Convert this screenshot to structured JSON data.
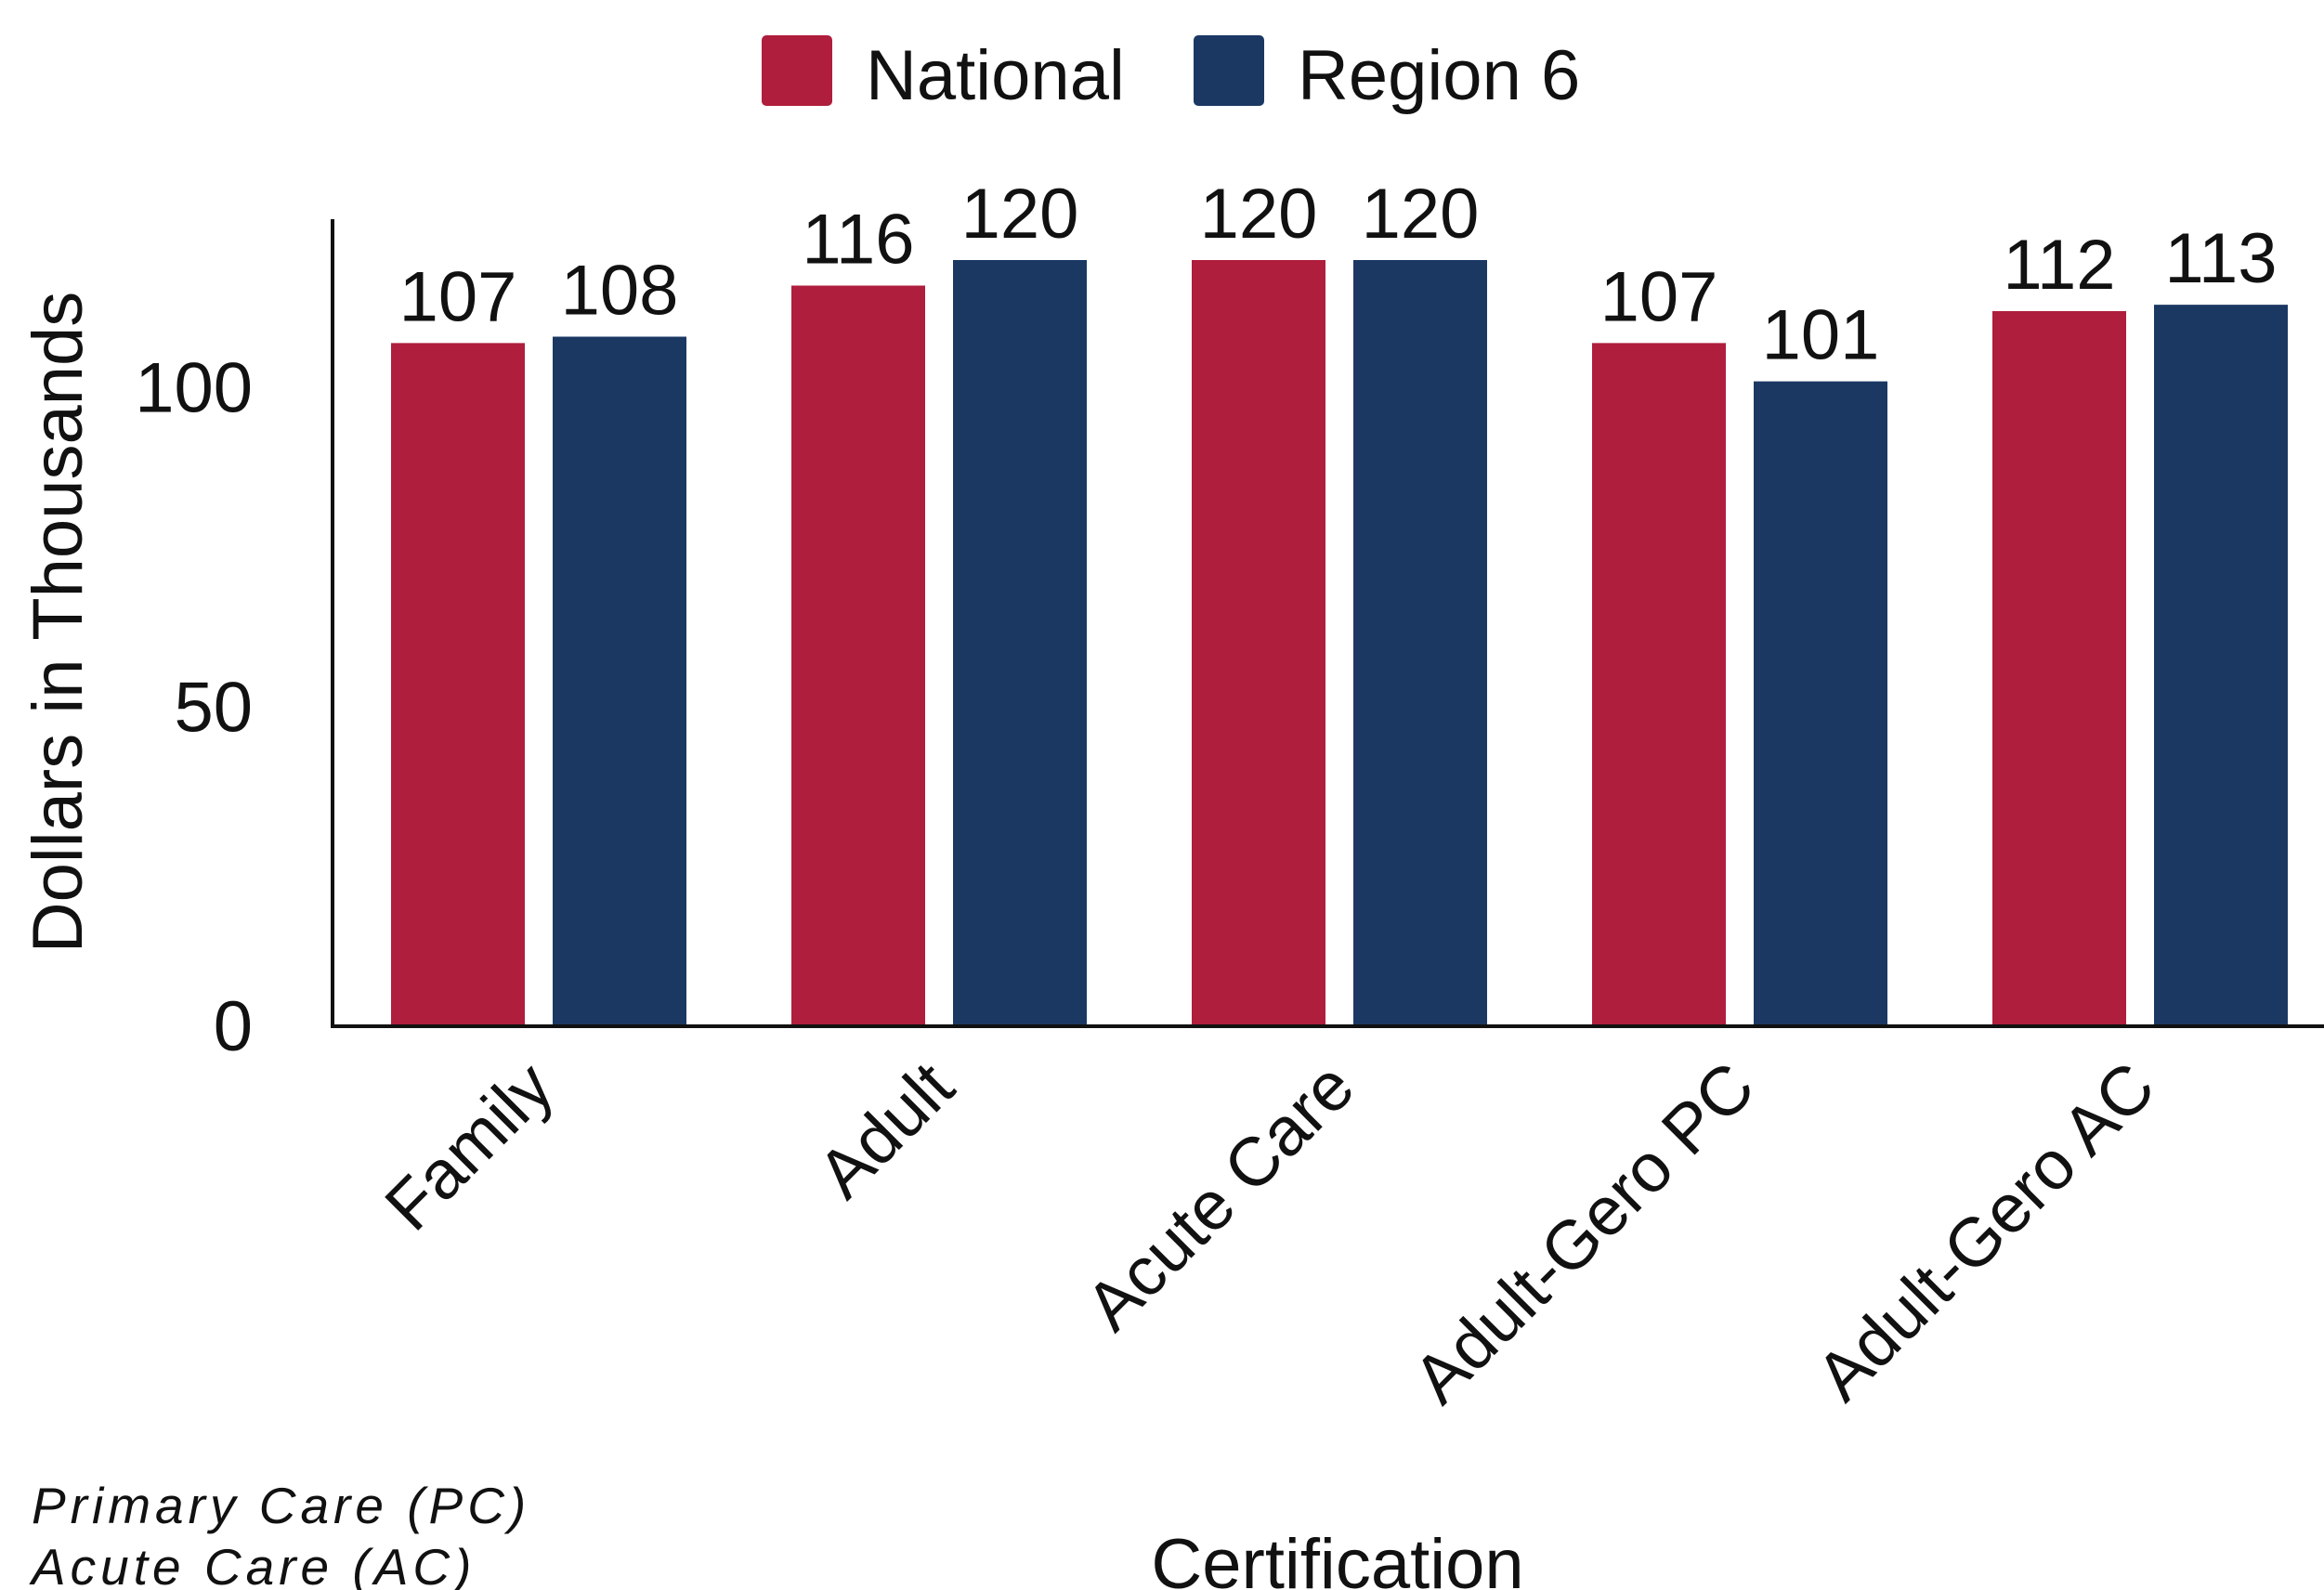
{
  "chart_data": {
    "type": "bar",
    "categories": [
      "Family",
      "Adult",
      "Acute Care",
      "Adult-Gero PC",
      "Adult-Gero AC"
    ],
    "series": [
      {
        "name": "National",
        "color": "#AF1E3C",
        "values": [
          107,
          116,
          120,
          107,
          112
        ]
      },
      {
        "name": "Region 6",
        "color": "#1B3863",
        "values": [
          108,
          120,
          120,
          101,
          113
        ]
      }
    ],
    "xlabel": "Certification",
    "ylabel": "Dollars in Thousands",
    "ylim": [
      0,
      127
    ],
    "yticks": [
      0,
      50,
      100
    ],
    "legend_position": "top-center",
    "grid": false
  },
  "notes": [
    "Primary Care (PC)",
    "Acute Care (AC)"
  ]
}
